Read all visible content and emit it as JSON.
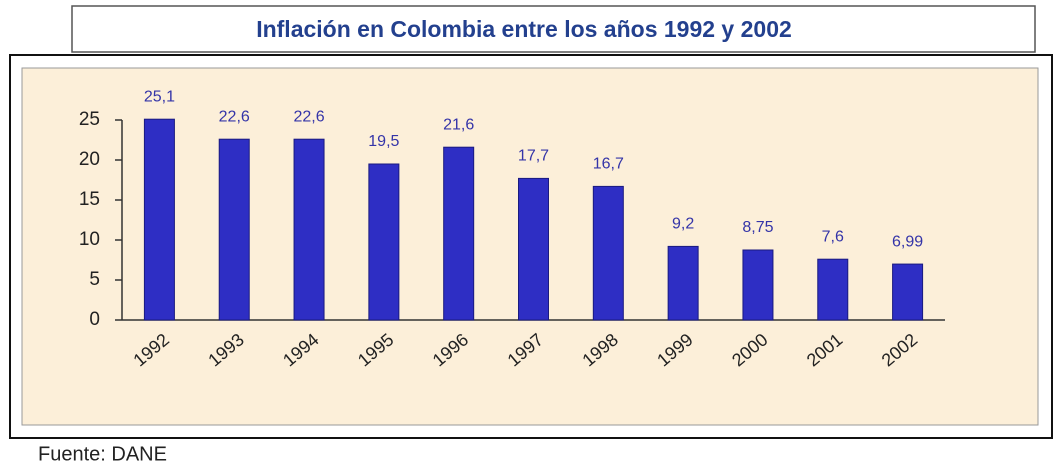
{
  "chart_data": {
    "type": "bar",
    "title": "Inflación en Colombia entre los años 1992 y 2002",
    "categories": [
      "1992",
      "1993",
      "1994",
      "1995",
      "1996",
      "1997",
      "1998",
      "1999",
      "2000",
      "2001",
      "2002"
    ],
    "values": [
      25.1,
      22.6,
      22.6,
      19.5,
      21.6,
      17.7,
      16.7,
      9.2,
      8.75,
      7.6,
      6.99
    ],
    "value_labels": [
      "25,1",
      "22,6",
      "22,6",
      "19,5",
      "21,6",
      "17,7",
      "16,7",
      "9,2",
      "8,75",
      "7,6",
      "6,99"
    ],
    "color": "#2e2ec4",
    "ylim": [
      0,
      25
    ],
    "yticks": [
      0,
      5,
      10,
      15,
      20,
      25
    ],
    "grid": false,
    "source": "Fuente: DANE"
  }
}
